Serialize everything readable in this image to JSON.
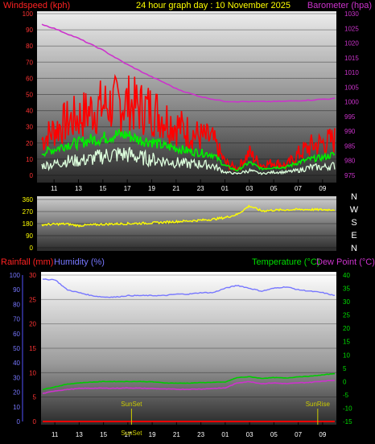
{
  "header": {
    "left_title": "Windspeed (kph)",
    "center_title": "24 hour graph day : 10 November 2025",
    "right_title": "Barometer (hpa)"
  },
  "bottom_header": {
    "rainfall_label": "Rainfall (mm)",
    "humidity_label": "Humidity (%)",
    "temperature_label": "Temperature (°C)",
    "dewpoint_label": "Dew Point (°C)"
  },
  "colors": {
    "gust": "#ff0000",
    "wind_avg": "#00ee00",
    "wind_low": "#ddffdd",
    "barometer": "#cc33cc",
    "wind_direction": "#ffff00",
    "humidity": "#7777ff",
    "temperature": "#00cc00",
    "dew_point": "#cc33cc",
    "rainfall": "#ff0000",
    "sun_events": "#cccc00"
  },
  "chart_data": [
    {
      "type": "line",
      "name": "wind-barometer",
      "x_tick_labels": [
        "11",
        "13",
        "15",
        "17",
        "19",
        "21",
        "23",
        "01",
        "03",
        "05",
        "07",
        "09"
      ],
      "y_left_ticks": [
        0,
        10,
        20,
        30,
        40,
        50,
        60,
        70,
        80,
        90,
        100
      ],
      "y_left_label": "Windspeed (kph)",
      "y_left_range": [
        0,
        100
      ],
      "y_right_ticks": [
        975,
        980,
        985,
        990,
        995,
        1000,
        1005,
        1010,
        1015,
        1020,
        1025,
        1030
      ],
      "y_right_label": "Barometer (hpa)",
      "y_right_range": [
        975,
        1030
      ],
      "hours": [
        0,
        1,
        2,
        3,
        4,
        5,
        6,
        7,
        8,
        9,
        10,
        11,
        12,
        13,
        14,
        15,
        16,
        17,
        18,
        19,
        20,
        21,
        22,
        23,
        24
      ],
      "series": [
        {
          "key": "gust",
          "axis": "left",
          "values": [
            22,
            28,
            33,
            36,
            40,
            43,
            44,
            45,
            42,
            41,
            36,
            31,
            27,
            24,
            22,
            8,
            4,
            14,
            6,
            8,
            6,
            13,
            18,
            20,
            22
          ]
        },
        {
          "key": "wind_avg",
          "axis": "left",
          "values": [
            14,
            16,
            19,
            20,
            22,
            23,
            25,
            25,
            22,
            21,
            18,
            17,
            15,
            14,
            13,
            6,
            3,
            8,
            4,
            5,
            5,
            8,
            10,
            11,
            13
          ]
        },
        {
          "key": "wind_low",
          "axis": "left",
          "values": [
            6,
            7,
            9,
            9,
            10,
            12,
            13,
            13,
            11,
            10,
            9,
            8,
            7,
            7,
            6,
            2,
            1,
            3,
            1,
            2,
            2,
            3,
            5,
            5,
            6
          ]
        },
        {
          "key": "barometer",
          "axis": "right",
          "values": [
            1026.4,
            1025,
            1023.3,
            1021.6,
            1019.6,
            1017.6,
            1015.1,
            1012.7,
            1010.6,
            1008.5,
            1006.6,
            1004.5,
            1003,
            1001.8,
            1000.9,
            1000.2,
            1000.1,
            1000.1,
            1000.1,
            1000.1,
            1000.2,
            1000.4,
            1000.6,
            1000.9,
            1001.1
          ]
        }
      ]
    },
    {
      "type": "line",
      "name": "wind-direction",
      "x_tick_labels": [],
      "y_left_ticks": [
        0,
        90,
        180,
        270,
        360
      ],
      "y_left_range": [
        0,
        360
      ],
      "compass_labels": [
        "N",
        "W",
        "S",
        "E",
        "N"
      ],
      "hours": [
        0,
        1,
        2,
        3,
        4,
        5,
        6,
        7,
        8,
        9,
        10,
        11,
        12,
        13,
        14,
        15,
        16,
        17,
        18,
        19,
        20,
        21,
        22,
        23,
        24
      ],
      "series": [
        {
          "key": "wind_direction",
          "values": [
            172,
            175,
            178,
            165,
            170,
            175,
            178,
            180,
            182,
            185,
            190,
            195,
            200,
            205,
            212,
            225,
            248,
            312,
            275,
            280,
            283,
            285,
            285,
            283,
            285
          ]
        }
      ]
    },
    {
      "type": "line",
      "name": "temperature-humidity",
      "x_tick_labels": [
        "11",
        "13",
        "15",
        "17",
        "19",
        "21",
        "23",
        "01",
        "03",
        "05",
        "07",
        "09"
      ],
      "y_left_ticks": [
        0,
        5,
        10,
        15,
        20,
        25,
        30
      ],
      "y_left_label": "Rainfall (mm)",
      "y_left_range": [
        0,
        30
      ],
      "y_humidity_ticks": [
        0,
        10,
        20,
        30,
        40,
        50,
        60,
        70,
        80,
        90,
        100
      ],
      "y_humidity_label": "Humidity (%)",
      "y_humidity_range": [
        0,
        100
      ],
      "y_right_ticks": [
        -15,
        -10,
        -5,
        0,
        5,
        10,
        15,
        20,
        25,
        30,
        35,
        40
      ],
      "y_right_label": "Temperature (°C)",
      "y_right2_label": "Dew Point (°C)",
      "y_right_range": [
        -15,
        40
      ],
      "hours": [
        0,
        1,
        2,
        3,
        4,
        5,
        6,
        7,
        8,
        9,
        10,
        11,
        12,
        13,
        14,
        15,
        16,
        17,
        18,
        19,
        20,
        21,
        22,
        23,
        24
      ],
      "series": [
        {
          "key": "humidity",
          "axis": "humidity",
          "values": [
            97,
            97,
            90,
            88,
            86,
            85,
            85,
            86,
            86,
            86,
            86,
            87,
            87,
            88,
            88,
            91,
            93,
            91,
            89,
            91,
            92,
            90,
            89,
            88,
            86
          ]
        },
        {
          "key": "temperature",
          "axis": "right",
          "values": [
            -3,
            -2,
            -1,
            -0.5,
            -0.2,
            0,
            0,
            0,
            0,
            -0.1,
            -0.5,
            -0.6,
            -0.6,
            -0.4,
            -0.3,
            -0.2,
            1.5,
            1.8,
            1.2,
            1.5,
            1.3,
            1.8,
            2.0,
            2.5,
            3.0
          ]
        },
        {
          "key": "dew_point",
          "axis": "right",
          "values": [
            -4.5,
            -3.5,
            -3,
            -2.6,
            -2.5,
            -2.5,
            -2.5,
            -2.4,
            -2.5,
            -2.6,
            -2.8,
            -2.9,
            -2.9,
            -2.8,
            -2.6,
            -2.4,
            -0.5,
            0,
            -0.8,
            -0.5,
            -0.8,
            -0.5,
            -0.3,
            0.2,
            0.5
          ]
        },
        {
          "key": "rainfall",
          "axis": "left",
          "values": [
            0,
            0,
            0,
            0,
            0,
            0,
            0,
            0,
            0,
            0,
            0,
            0,
            0,
            0,
            0,
            0,
            0,
            0,
            0,
            0,
            0,
            0,
            0,
            0,
            0
          ]
        }
      ],
      "events": [
        {
          "label": "SunSet",
          "hour": 7.3
        },
        {
          "label": "SunRise",
          "hour": 22.6
        }
      ],
      "bottom_sun_label": "SunSet"
    }
  ]
}
